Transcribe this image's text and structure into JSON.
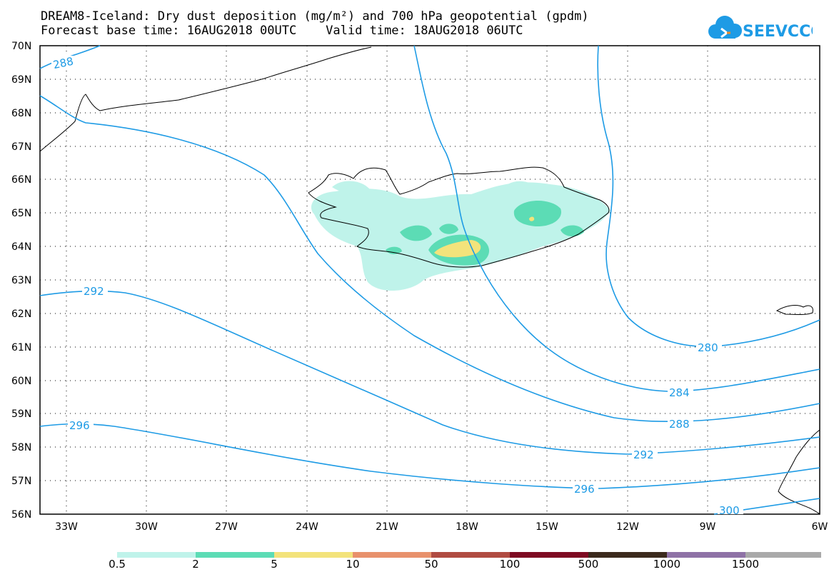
{
  "header": {
    "title_line1": "DREAM8-Iceland: Dry dust deposition (mg/m²) and 700 hPa geopotential (gpdm)",
    "title_line2": "Forecast base time: 16AUG2018 00UTC    Valid time: 18AUG2018 06UTC"
  },
  "logo": {
    "text": "SEEVCCC",
    "icon": "cloud-icon",
    "color": "#1e9be5"
  },
  "axes": {
    "lat_labels": [
      "70N",
      "69N",
      "68N",
      "67N",
      "66N",
      "65N",
      "64N",
      "63N",
      "62N",
      "61N",
      "60N",
      "59N",
      "58N",
      "57N",
      "56N"
    ],
    "lon_labels": [
      "33W",
      "30W",
      "27W",
      "24W",
      "21W",
      "18W",
      "15W",
      "12W",
      "9W",
      "6W"
    ]
  },
  "contours": {
    "color": "#1e9be5",
    "labels": [
      "288",
      "292",
      "296",
      "280",
      "284",
      "288",
      "292",
      "296",
      "300"
    ]
  },
  "colorbar": {
    "labels": [
      "0.5",
      "2",
      "5",
      "10",
      "50",
      "100",
      "500",
      "1000",
      "1500"
    ],
    "colors": [
      "#bff3ea",
      "#5cdcb5",
      "#f3e37b",
      "#e8916c",
      "#b04b41",
      "#7e0a22",
      "#3b2a1d",
      "#8e72a6",
      "#a9a9a9"
    ]
  }
}
